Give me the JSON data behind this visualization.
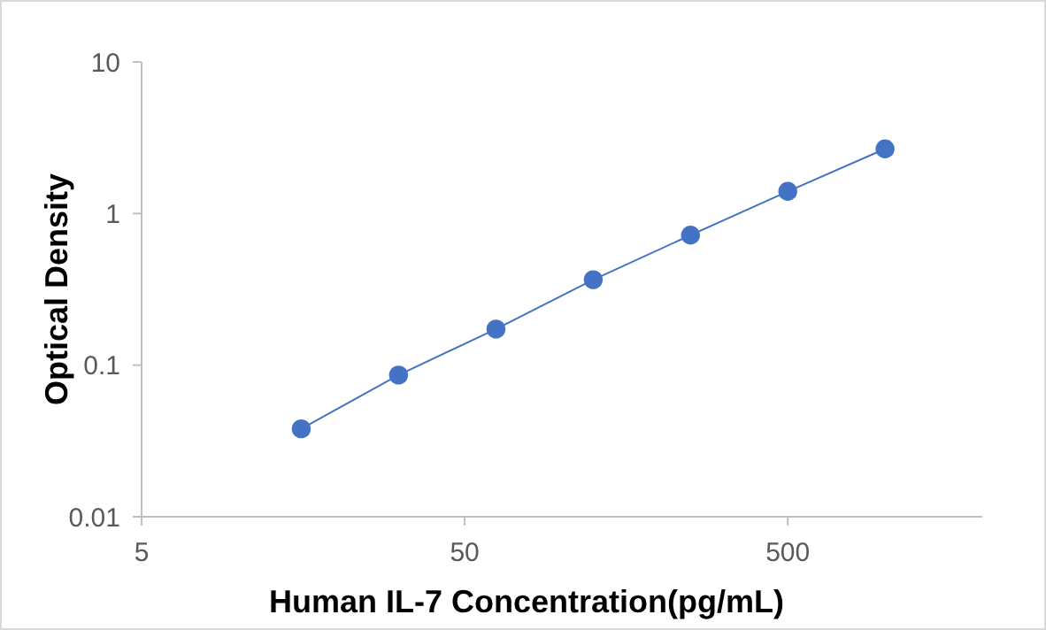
{
  "chart_data": {
    "type": "line",
    "xlabel": "Human IL-7 Concentration(pg/mL)",
    "ylabel": "Optical  Density",
    "x": [
      15.6,
      31.2,
      62.5,
      125,
      250,
      500,
      1000
    ],
    "series": [
      {
        "color": "#4472c4",
        "values": [
          0.038,
          0.086,
          0.173,
          0.366,
          0.72,
          1.4,
          2.67
        ]
      }
    ],
    "log": "xy",
    "xlim": [
      5,
      2000
    ],
    "ylim": [
      0.01,
      10
    ],
    "xticks": [
      5,
      50,
      500
    ],
    "yticks": [
      0.01,
      0.1,
      1,
      10
    ],
    "marker": "circle",
    "grid": false
  }
}
